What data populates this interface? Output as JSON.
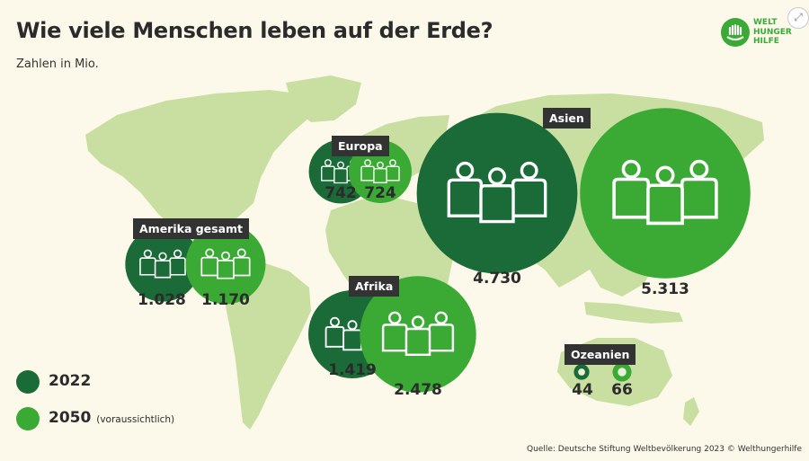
{
  "header": {
    "title": "Wie viele Menschen leben auf der Erde?",
    "subtitle": "Zahlen in Mio."
  },
  "logo": {
    "line1": "WELT",
    "line2": "HUNGER",
    "line3": "HILFE",
    "color": "#3aaa35"
  },
  "colors": {
    "y2022": "#1a6b37",
    "y2050": "#3aaa35",
    "land": "#c9dfa2",
    "label_bg": "#333333",
    "background": "#fcf9ea"
  },
  "legend": {
    "items": [
      {
        "year": "2022",
        "note": ""
      },
      {
        "year": "2050",
        "note": "(voraussichtlich)"
      }
    ]
  },
  "chart_data": {
    "type": "bubble",
    "title": "Wie viele Menschen leben auf der Erde?",
    "unit": "Zahlen in Mio.",
    "series": [
      {
        "name": "2022",
        "values": [
          1028,
          742,
          1419,
          4730,
          44
        ]
      },
      {
        "name": "2050",
        "values": [
          1170,
          724,
          2478,
          5313,
          66
        ]
      }
    ],
    "regions": [
      {
        "name": "Amerika gesamt",
        "label_2022": "1.028",
        "label_2050": "1.170",
        "value_2022": 1028,
        "value_2050": 1170
      },
      {
        "name": "Europa",
        "label_2022": "742",
        "label_2050": "724",
        "value_2022": 742,
        "value_2050": 724
      },
      {
        "name": "Afrika",
        "label_2022": "1.419",
        "label_2050": "2.478",
        "value_2022": 1419,
        "value_2050": 2478
      },
      {
        "name": "Asien",
        "label_2022": "4.730",
        "label_2050": "5.313",
        "value_2022": 4730,
        "value_2050": 5313
      },
      {
        "name": "Ozeanien",
        "label_2022": "44",
        "label_2050": "66",
        "value_2022": 44,
        "value_2050": 66
      }
    ]
  },
  "source": "Quelle: Deutsche Stiftung Weltbevölkerung 2023 © Welthungerhilfe"
}
